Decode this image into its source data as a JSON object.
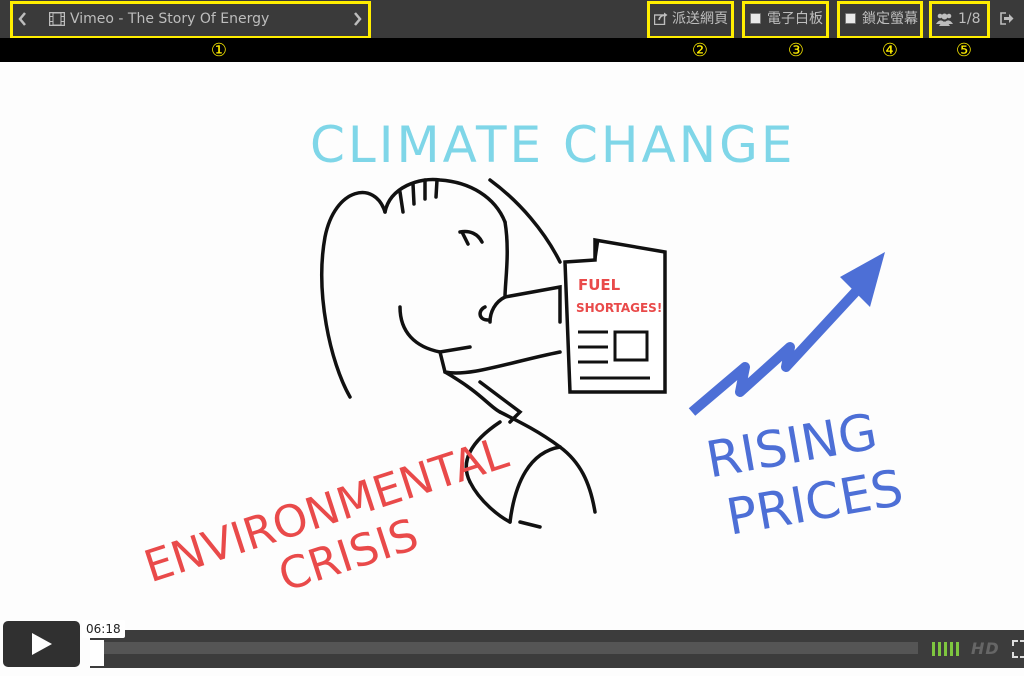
{
  "toolbar": {
    "title": "Vimeo - The Story Of Energy",
    "share_label": "派送網頁",
    "whiteboard_label": "電子白板",
    "lock_screen_label": "鎖定螢幕",
    "attendees_count": "1/8"
  },
  "annotations": {
    "n1": "①",
    "n2": "②",
    "n3": "③",
    "n4": "④",
    "n5": "⑤"
  },
  "video": {
    "text_climate": "CLIMATE CHANGE",
    "text_fuel1": "FUEL",
    "text_fuel2": "SHORTAGES!",
    "text_env1": "ENVIRONMENTAL",
    "text_env2": "CRISIS",
    "text_rising": "RISING",
    "text_prices": "PRICES"
  },
  "player": {
    "timestamp": "06:18",
    "hd_label": "HD",
    "volume_bars": 5
  },
  "colors": {
    "highlight": "#ffee00",
    "toolbar_bg": "#3a3a3a",
    "climate": "#7fd6e8",
    "env": "#e94a4a",
    "rising": "#4d6fd6",
    "volume": "#7ec63f"
  }
}
